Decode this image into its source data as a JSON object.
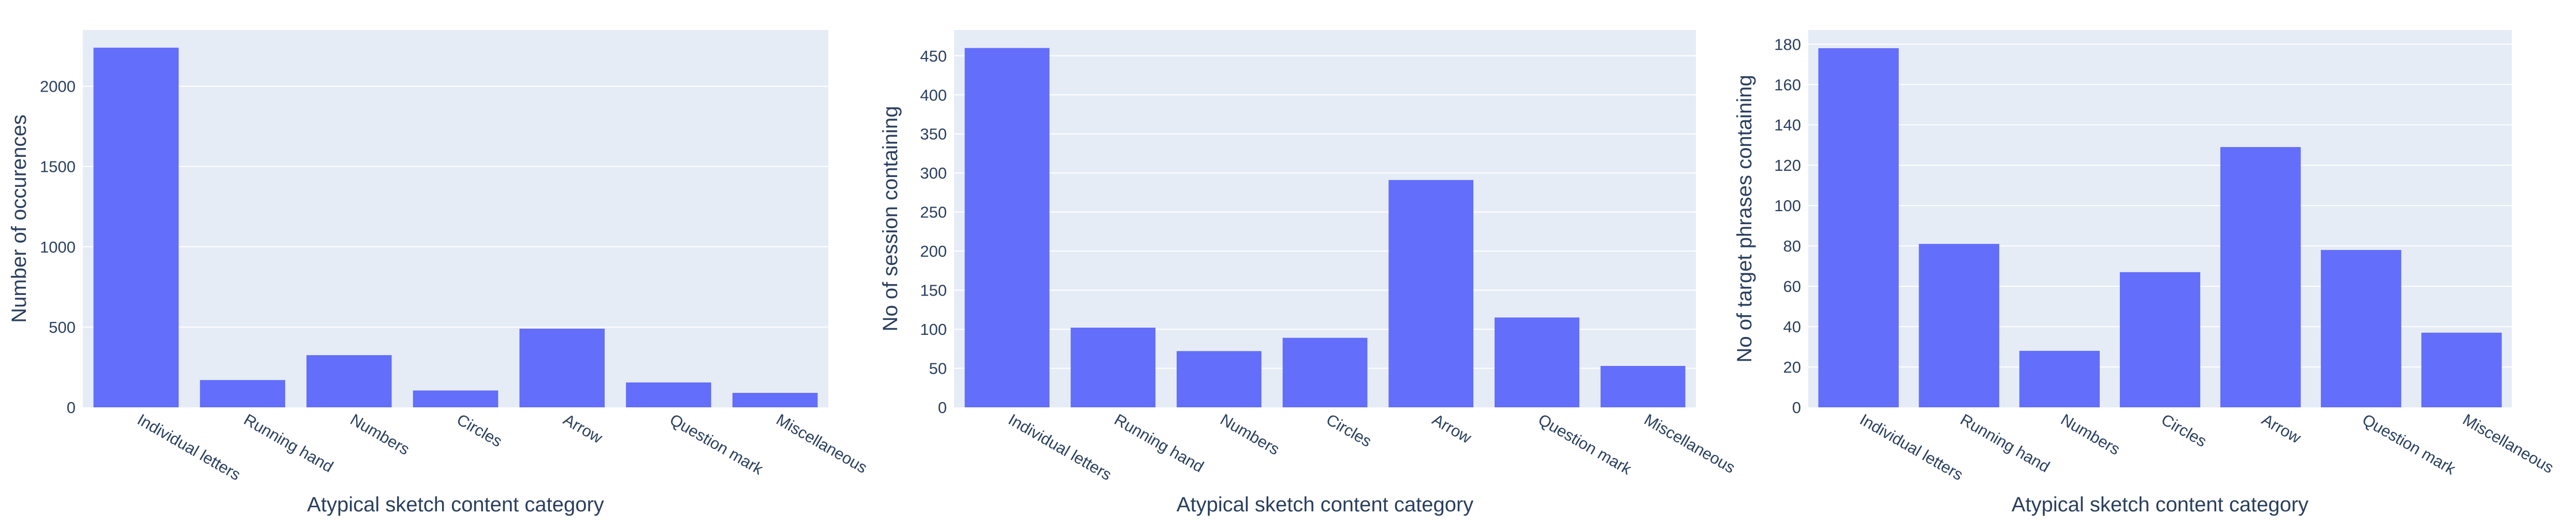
{
  "colors": {
    "plot_bg": "#e5ecf6",
    "grid": "#ffffff",
    "bar": "#636efa",
    "text": "#2a3f5f"
  },
  "chart_data": [
    {
      "type": "bar",
      "categories": [
        "Individual letters",
        "Running hand",
        "Numbers",
        "Circles",
        "Arrow",
        "Question mark",
        "Miscellaneous"
      ],
      "values": [
        2240,
        170,
        325,
        105,
        490,
        155,
        90
      ],
      "xlabel": "Atypical sketch content category",
      "ylabel": "Number of occurences",
      "ylim": [
        0,
        2350
      ],
      "yticks": [
        0,
        500,
        1000,
        1500,
        2000
      ],
      "grid": true
    },
    {
      "type": "bar",
      "categories": [
        "Individual letters",
        "Running hand",
        "Numbers",
        "Circles",
        "Arrow",
        "Question mark",
        "Miscellaneous"
      ],
      "values": [
        460,
        102,
        72,
        89,
        291,
        115,
        53
      ],
      "xlabel": "Atypical sketch content category",
      "ylabel": "No of session containing",
      "ylim": [
        0,
        483
      ],
      "yticks": [
        0,
        50,
        100,
        150,
        200,
        250,
        300,
        350,
        400,
        450
      ],
      "grid": true
    },
    {
      "type": "bar",
      "categories": [
        "Individual letters",
        "Running hand",
        "Numbers",
        "Circles",
        "Arrow",
        "Question mark",
        "Miscellaneous"
      ],
      "values": [
        178,
        81,
        28,
        67,
        129,
        78,
        37
      ],
      "xlabel": "Atypical sketch content category",
      "ylabel": "No of target phrases containing",
      "ylim": [
        0,
        187
      ],
      "yticks": [
        0,
        20,
        40,
        60,
        80,
        100,
        120,
        140,
        160,
        180
      ],
      "grid": true
    }
  ]
}
